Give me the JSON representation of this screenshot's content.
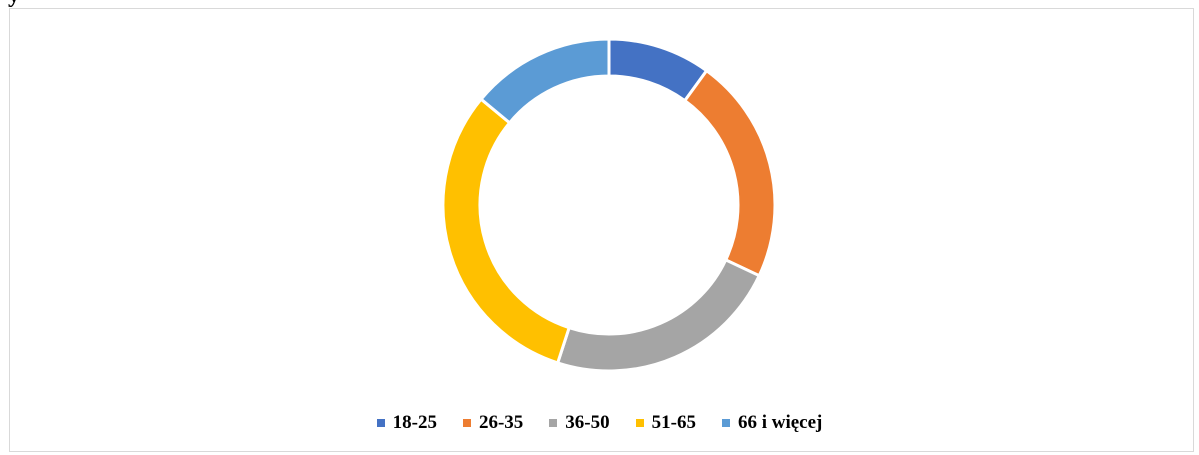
{
  "chart_data": {
    "type": "pie",
    "variant": "donut",
    "title": "",
    "title_fragment": "y",
    "categories": [
      "18-25",
      "26-35",
      "36-50",
      "51-65",
      "66 i więcej"
    ],
    "values": [
      10,
      22,
      23,
      31,
      14
    ],
    "colors": [
      "#4472c4",
      "#ed7d31",
      "#a5a5a5",
      "#ffc000",
      "#5b9bd5"
    ],
    "legend_position": "bottom",
    "start_angle": "top",
    "direction": "clockwise"
  }
}
